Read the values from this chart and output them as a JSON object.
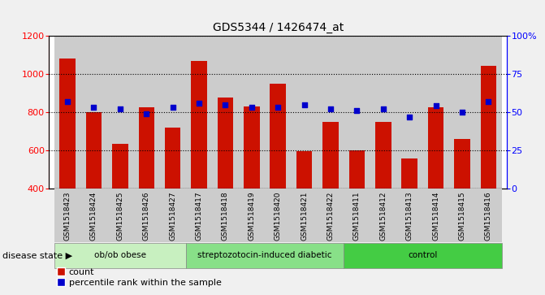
{
  "title": "GDS5344 / 1426474_at",
  "samples": [
    "GSM1518423",
    "GSM1518424",
    "GSM1518425",
    "GSM1518426",
    "GSM1518427",
    "GSM1518417",
    "GSM1518418",
    "GSM1518419",
    "GSM1518420",
    "GSM1518421",
    "GSM1518422",
    "GSM1518411",
    "GSM1518412",
    "GSM1518413",
    "GSM1518414",
    "GSM1518415",
    "GSM1518416"
  ],
  "bar_values": [
    1080,
    800,
    635,
    825,
    720,
    1065,
    875,
    830,
    950,
    595,
    750,
    600,
    748,
    558,
    825,
    658,
    1042
  ],
  "percentile_values": [
    57,
    53,
    52,
    49,
    53,
    56,
    55,
    53,
    53,
    55,
    52,
    51,
    52,
    47,
    54,
    50,
    57
  ],
  "groups": [
    {
      "label": "ob/ob obese",
      "start": 0,
      "end": 5,
      "color": "#c8f0c0"
    },
    {
      "label": "streptozotocin-induced diabetic",
      "start": 5,
      "end": 11,
      "color": "#88e088"
    },
    {
      "label": "control",
      "start": 11,
      "end": 17,
      "color": "#44cc44"
    }
  ],
  "ylim_left": [
    400,
    1200
  ],
  "ylim_right": [
    0,
    100
  ],
  "yticks_left": [
    400,
    600,
    800,
    1000,
    1200
  ],
  "yticks_right": [
    0,
    25,
    50,
    75,
    100
  ],
  "bar_color": "#cc1100",
  "scatter_color": "#0000cc",
  "col_bg_color": "#cccccc",
  "plot_bg": "#ffffff",
  "fig_bg": "#f0f0f0",
  "legend_count": "count",
  "legend_percentile": "percentile rank within the sample",
  "disease_state_label": "disease state"
}
